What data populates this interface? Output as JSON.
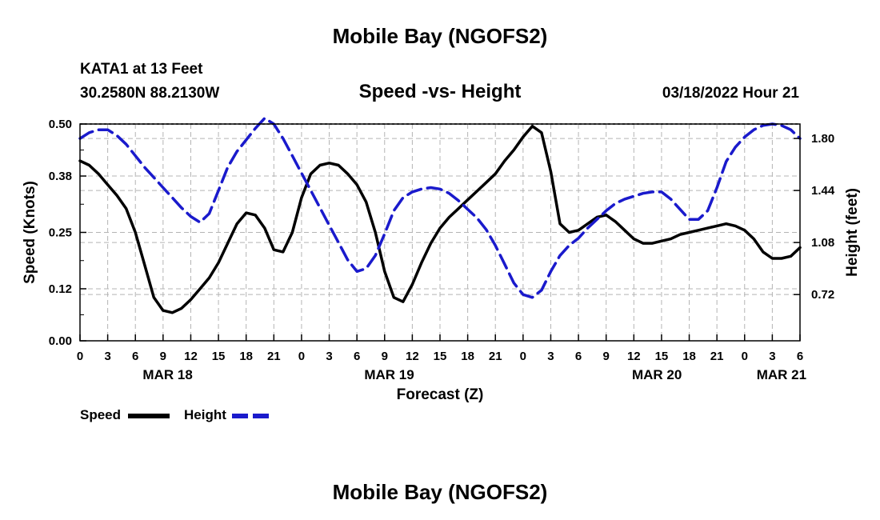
{
  "header": {
    "title": "Mobile Bay (NGOFS2)",
    "station": "KATA1 at 13 Feet",
    "coords": "30.2580N  88.2130W",
    "subtitle": "Speed -vs- Height",
    "datetime": "03/18/2022 Hour 21",
    "bottom_title": "Mobile Bay (NGOFS2)"
  },
  "legend": {
    "speed_label": "Speed",
    "height_label": "Height"
  },
  "colors": {
    "speed": "#000000",
    "height": "#1a1acc",
    "grid": "#b4b4b4"
  },
  "chart_data": {
    "type": "line",
    "title": "Speed -vs- Height",
    "xlabel": "Forecast (Z)",
    "ylabel": "Speed (Knots)",
    "y2label": "Height (feet)",
    "xlim": [
      0,
      78
    ],
    "ylim": [
      0,
      0.5
    ],
    "y2lim": [
      0.4,
      1.9
    ],
    "x_ticks": [
      0,
      3,
      6,
      9,
      12,
      15,
      18,
      21,
      24,
      27,
      30,
      33,
      36,
      39,
      42,
      45,
      48,
      51,
      54,
      57,
      60,
      63,
      66,
      69,
      72,
      75,
      78
    ],
    "x_tick_labels": [
      "0",
      "3",
      "6",
      "9",
      "12",
      "15",
      "18",
      "21",
      "0",
      "3",
      "6",
      "9",
      "12",
      "15",
      "18",
      "21",
      "0",
      "3",
      "6",
      "9",
      "12",
      "15",
      "18",
      "21",
      "0",
      "3",
      "6"
    ],
    "date_labels": [
      {
        "x": 9.5,
        "label": "MAR 18"
      },
      {
        "x": 33.5,
        "label": "MAR 19"
      },
      {
        "x": 62.5,
        "label": "MAR 20"
      },
      {
        "x": 76,
        "label": "MAR 21"
      }
    ],
    "y_ticks": [
      0,
      0.12,
      0.25,
      0.38,
      0.5
    ],
    "y_tick_labels": [
      "0.00",
      "0.12",
      "0.25",
      "0.38",
      "0.50"
    ],
    "y2_ticks": [
      0.72,
      1.08,
      1.44,
      1.8
    ],
    "y2_tick_labels": [
      "0.72",
      "1.08",
      "1.44",
      "1.80"
    ],
    "series": [
      {
        "name": "Speed",
        "axis": "left",
        "style": "solid",
        "x": [
          0,
          1,
          2,
          3,
          4,
          5,
          6,
          7,
          8,
          9,
          10,
          11,
          12,
          13,
          14,
          15,
          16,
          17,
          18,
          19,
          20,
          21,
          22,
          23,
          24,
          25,
          26,
          27,
          28,
          29,
          30,
          31,
          32,
          33,
          34,
          35,
          36,
          37,
          38,
          39,
          40,
          41,
          42,
          43,
          44,
          45,
          46,
          47,
          48,
          49,
          50,
          51,
          52,
          53,
          54,
          55,
          56,
          57,
          58,
          59,
          60,
          61,
          62,
          63,
          64,
          65,
          66,
          67,
          68,
          69,
          70,
          71,
          72,
          73,
          74,
          75,
          76,
          77,
          78
        ],
        "values": [
          0.415,
          0.405,
          0.385,
          0.36,
          0.335,
          0.305,
          0.25,
          0.175,
          0.1,
          0.07,
          0.065,
          0.075,
          0.095,
          0.12,
          0.145,
          0.18,
          0.225,
          0.27,
          0.295,
          0.29,
          0.26,
          0.21,
          0.205,
          0.25,
          0.33,
          0.385,
          0.405,
          0.41,
          0.405,
          0.385,
          0.36,
          0.32,
          0.25,
          0.16,
          0.1,
          0.09,
          0.13,
          0.18,
          0.225,
          0.26,
          0.285,
          0.305,
          0.325,
          0.345,
          0.365,
          0.385,
          0.415,
          0.44,
          0.47,
          0.495,
          0.48,
          0.39,
          0.27,
          0.25,
          0.255,
          0.27,
          0.285,
          0.29,
          0.275,
          0.255,
          0.235,
          0.225,
          0.225,
          0.23,
          0.235,
          0.245,
          0.25,
          0.255,
          0.26,
          0.265,
          0.27,
          0.265,
          0.255,
          0.235,
          0.205,
          0.19,
          0.19,
          0.195,
          0.215
        ]
      },
      {
        "name": "Height",
        "axis": "right",
        "style": "dashed",
        "x": [
          0,
          1,
          2,
          3,
          4,
          5,
          6,
          7,
          8,
          9,
          10,
          11,
          12,
          13,
          14,
          15,
          16,
          17,
          18,
          19,
          20,
          21,
          22,
          23,
          24,
          25,
          26,
          27,
          28,
          29,
          30,
          31,
          32,
          33,
          34,
          35,
          36,
          37,
          38,
          39,
          40,
          41,
          42,
          43,
          44,
          45,
          46,
          47,
          48,
          49,
          50,
          51,
          52,
          53,
          54,
          55,
          56,
          57,
          58,
          59,
          60,
          61,
          62,
          63,
          64,
          65,
          66,
          67,
          68,
          69,
          70,
          71,
          72,
          73,
          74,
          75,
          76,
          77,
          78
        ],
        "values": [
          1.8,
          1.84,
          1.86,
          1.86,
          1.82,
          1.76,
          1.68,
          1.6,
          1.53,
          1.46,
          1.39,
          1.32,
          1.26,
          1.22,
          1.28,
          1.44,
          1.6,
          1.71,
          1.79,
          1.87,
          1.94,
          1.9,
          1.8,
          1.68,
          1.56,
          1.44,
          1.32,
          1.2,
          1.08,
          0.96,
          0.88,
          0.9,
          0.99,
          1.14,
          1.3,
          1.39,
          1.43,
          1.45,
          1.46,
          1.45,
          1.42,
          1.37,
          1.31,
          1.25,
          1.17,
          1.06,
          0.93,
          0.8,
          0.72,
          0.7,
          0.75,
          0.88,
          0.99,
          1.06,
          1.11,
          1.18,
          1.24,
          1.3,
          1.35,
          1.38,
          1.4,
          1.42,
          1.43,
          1.43,
          1.38,
          1.31,
          1.24,
          1.24,
          1.3,
          1.46,
          1.64,
          1.74,
          1.81,
          1.86,
          1.89,
          1.9,
          1.89,
          1.86,
          1.8
        ]
      }
    ]
  }
}
